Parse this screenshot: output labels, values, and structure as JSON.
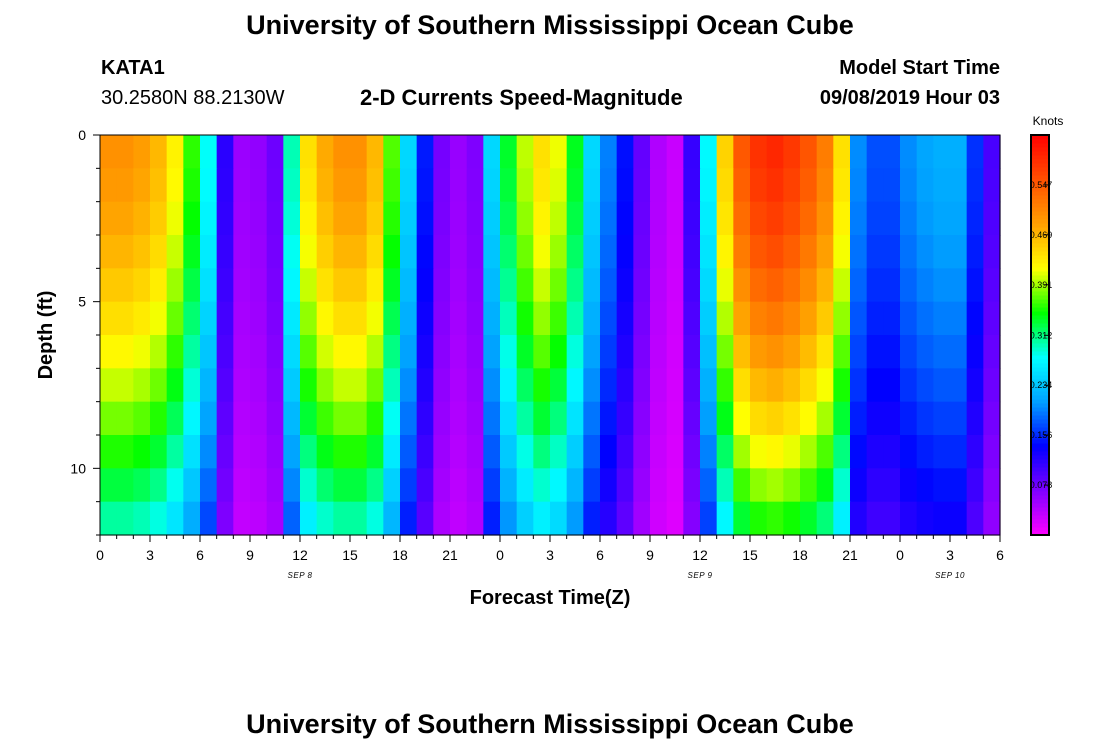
{
  "page": {
    "title": "University of Southern Mississippi Ocean Cube",
    "footer_title": "University of Southern Mississippi Ocean Cube",
    "station_id": "KATA1",
    "coordinates": "30.2580N 88.2130W",
    "model_label": "Model Start Time",
    "model_start": "09/08/2019 Hour 03"
  },
  "chart_data": {
    "type": "heatmap",
    "title": "2-D Currents Speed-Magnitude",
    "xlabel": "Forecast Time(Z)",
    "ylabel": "Depth (ft)",
    "x_range_hours": [
      0,
      54
    ],
    "y_range_ft": [
      0,
      12
    ],
    "x_ticks": [
      {
        "h": 0,
        "label": "0"
      },
      {
        "h": 3,
        "label": "3"
      },
      {
        "h": 6,
        "label": "6"
      },
      {
        "h": 9,
        "label": "9"
      },
      {
        "h": 12,
        "label": "12"
      },
      {
        "h": 15,
        "label": "15"
      },
      {
        "h": 18,
        "label": "18"
      },
      {
        "h": 21,
        "label": "21"
      },
      {
        "h": 24,
        "label": "0"
      },
      {
        "h": 27,
        "label": "3"
      },
      {
        "h": 30,
        "label": "6"
      },
      {
        "h": 33,
        "label": "9"
      },
      {
        "h": 36,
        "label": "12"
      },
      {
        "h": 39,
        "label": "15"
      },
      {
        "h": 42,
        "label": "18"
      },
      {
        "h": 45,
        "label": "21"
      },
      {
        "h": 48,
        "label": "0"
      },
      {
        "h": 51,
        "label": "3"
      },
      {
        "h": 54,
        "label": "6"
      }
    ],
    "date_labels": [
      {
        "h": 12,
        "label": "SEP 8"
      },
      {
        "h": 36,
        "label": "SEP 9"
      },
      {
        "h": 51,
        "label": "SEP 10"
      }
    ],
    "y_ticks": [
      {
        "ft": 0,
        "label": "0"
      },
      {
        "ft": 5,
        "label": "5"
      },
      {
        "ft": 10,
        "label": "10"
      }
    ],
    "colorbar": {
      "label": "Knots",
      "min": 0,
      "max": 0.625,
      "ticks": [
        "0.078",
        "0.156",
        "0.234",
        "0.312",
        "0.391",
        "0.469",
        "0.547"
      ]
    },
    "colormap": [
      "#ff00ff",
      "#8000ff",
      "#0000ff",
      "#00a0ff",
      "#00ffff",
      "#00ff00",
      "#ffff00",
      "#ffa000",
      "#ff5000",
      "#ff0000"
    ],
    "depth_levels_ft": [
      0.5,
      1.5,
      2.5,
      3.5,
      4.5,
      5.5,
      6.5,
      7.5,
      8.5,
      9.5,
      10.5,
      11.5
    ],
    "surface_profile_knots": [
      [
        0,
        0.5
      ],
      [
        2,
        0.5
      ],
      [
        4,
        0.46
      ],
      [
        5.5,
        0.36
      ],
      [
        6.5,
        0.28
      ],
      [
        7.2,
        0.15
      ],
      [
        8,
        0.06
      ],
      [
        9,
        0.05
      ],
      [
        10.5,
        0.08
      ],
      [
        11.3,
        0.25
      ],
      [
        12,
        0.42
      ],
      [
        14,
        0.5
      ],
      [
        16,
        0.5
      ],
      [
        17,
        0.44
      ],
      [
        18,
        0.3
      ],
      [
        19,
        0.2
      ],
      [
        20,
        0.1
      ],
      [
        21,
        0.05
      ],
      [
        22.5,
        0.07
      ],
      [
        23.5,
        0.25
      ],
      [
        25,
        0.38
      ],
      [
        26.5,
        0.44
      ],
      [
        28,
        0.4
      ],
      [
        29,
        0.28
      ],
      [
        30,
        0.22
      ],
      [
        31,
        0.17
      ],
      [
        32,
        0.12
      ],
      [
        33,
        0.05
      ],
      [
        34.5,
        0.03
      ],
      [
        36,
        0.15
      ],
      [
        37,
        0.4
      ],
      [
        38.5,
        0.55
      ],
      [
        40,
        0.6
      ],
      [
        42,
        0.57
      ],
      [
        44,
        0.5
      ],
      [
        45,
        0.38
      ],
      [
        45.5,
        0.2
      ],
      [
        47,
        0.16
      ],
      [
        48.5,
        0.2
      ],
      [
        50,
        0.22
      ],
      [
        51.5,
        0.22
      ],
      [
        52.5,
        0.16
      ],
      [
        53.5,
        0.1
      ],
      [
        54,
        0.06
      ]
    ]
  }
}
